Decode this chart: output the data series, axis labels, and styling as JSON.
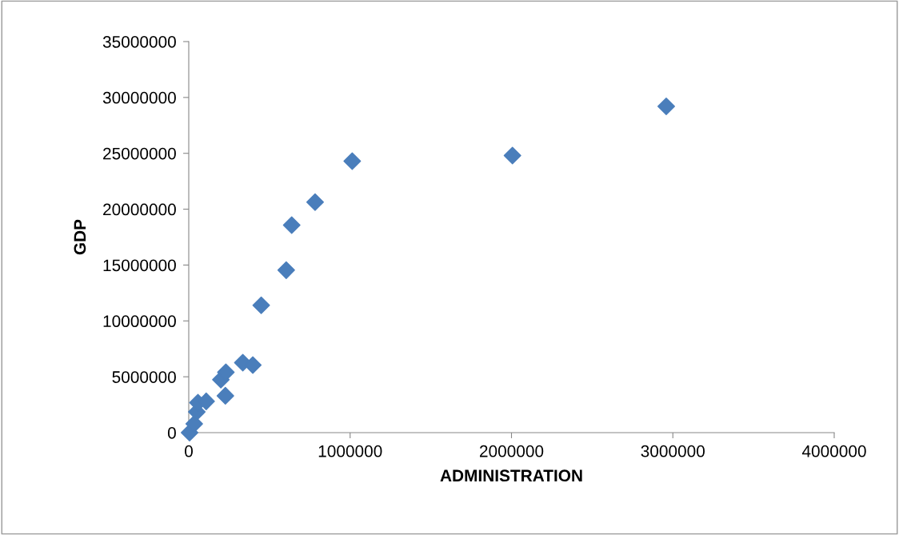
{
  "chart_data": {
    "type": "scatter",
    "xlabel": "ADMINISTRATION",
    "ylabel": "GDP",
    "x": [
      5000,
      34000,
      50000,
      57000,
      108000,
      199000,
      227000,
      230000,
      335000,
      397000,
      449000,
      604000,
      638000,
      783000,
      1013000,
      2006000,
      2959000
    ],
    "values": [
      0,
      790000,
      1860000,
      2680000,
      2800000,
      4740000,
      3300000,
      5400000,
      6260000,
      6050000,
      11400000,
      14540000,
      18570000,
      20630000,
      24300000,
      24800000,
      29200000
    ],
    "color": "#4a7ebb",
    "marker": "diamond",
    "grid": false,
    "legend": false,
    "xlim": [
      0,
      4000000
    ],
    "xticks": [
      0,
      1000000,
      2000000,
      3000000,
      4000000
    ],
    "ylim": [
      0,
      35000000
    ],
    "yticks": [
      0,
      5000000,
      10000000,
      15000000,
      20000000,
      25000000,
      30000000,
      35000000
    ]
  }
}
